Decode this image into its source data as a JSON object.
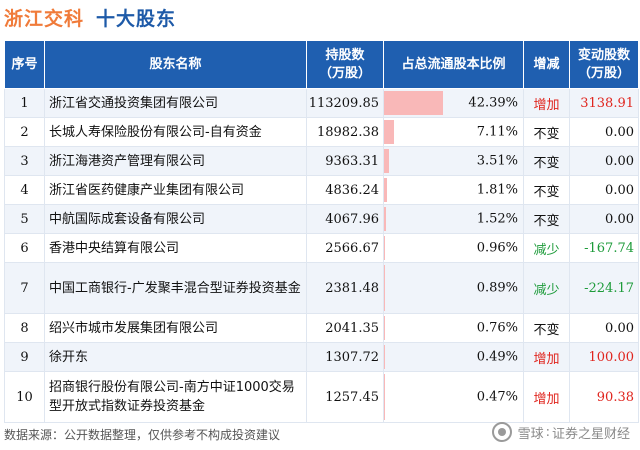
{
  "header": {
    "company": "浙江交科",
    "subtitle": "十大股东"
  },
  "columns": {
    "idx": "序号",
    "name": "股东名称",
    "shares_l1": "持股数",
    "shares_l2": "（万股）",
    "ratio": "占总流通股本比例",
    "change": "增减",
    "delta_l1": "变动股数",
    "delta_l2": "（万股）"
  },
  "rows": [
    {
      "idx": "1",
      "name": "浙江省交通投资集团有限公司",
      "shares": "113209.85",
      "ratio": "42.39%",
      "ratio_value": 42.39,
      "change": "增加",
      "trend": "up",
      "delta": "3138.91"
    },
    {
      "idx": "2",
      "name": "长城人寿保险股份有限公司-自有资金",
      "shares": "18982.38",
      "ratio": "7.11%",
      "ratio_value": 7.11,
      "change": "不变",
      "trend": "flat",
      "delta": "0.00"
    },
    {
      "idx": "3",
      "name": "浙江海港资产管理有限公司",
      "shares": "9363.31",
      "ratio": "3.51%",
      "ratio_value": 3.51,
      "change": "不变",
      "trend": "flat",
      "delta": "0.00"
    },
    {
      "idx": "4",
      "name": "浙江省医药健康产业集团有限公司",
      "shares": "4836.24",
      "ratio": "1.81%",
      "ratio_value": 1.81,
      "change": "不变",
      "trend": "flat",
      "delta": "0.00"
    },
    {
      "idx": "5",
      "name": "中航国际成套设备有限公司",
      "shares": "4067.96",
      "ratio": "1.52%",
      "ratio_value": 1.52,
      "change": "不变",
      "trend": "flat",
      "delta": "0.00"
    },
    {
      "idx": "6",
      "name": "香港中央结算有限公司",
      "shares": "2566.67",
      "ratio": "0.96%",
      "ratio_value": 0.96,
      "change": "减少",
      "trend": "down",
      "delta": "-167.74"
    },
    {
      "idx": "7",
      "name": "中国工商银行-广发聚丰混合型证券投资基金",
      "shares": "2381.48",
      "ratio": "0.89%",
      "ratio_value": 0.89,
      "change": "减少",
      "trend": "down",
      "delta": "-224.17"
    },
    {
      "idx": "8",
      "name": "绍兴市城市发展集团有限公司",
      "shares": "2041.35",
      "ratio": "0.76%",
      "ratio_value": 0.76,
      "change": "不变",
      "trend": "flat",
      "delta": "0.00"
    },
    {
      "idx": "9",
      "name": "徐开东",
      "shares": "1307.72",
      "ratio": "0.49%",
      "ratio_value": 0.49,
      "change": "增加",
      "trend": "up",
      "delta": "100.00"
    },
    {
      "idx": "10",
      "name": "招商银行股份有限公司-南方中证1000交易型开放式指数证券投资基金",
      "shares": "1257.45",
      "ratio": "0.47%",
      "ratio_value": 0.47,
      "change": "增加",
      "trend": "up",
      "delta": "90.38"
    }
  ],
  "footer": {
    "source": "数据来源：公开数据整理，仅供参考不构成投资建议"
  },
  "brand": {
    "name": "雪球",
    "tagline": "证券之星财经"
  },
  "colors": {
    "header_bg": "#1f5fb0",
    "title_company": "#f07b3a",
    "title_sub": "#1e5aa8",
    "up": "#e0251e",
    "down": "#1d9b3a",
    "bar": "#f9b8b8"
  }
}
